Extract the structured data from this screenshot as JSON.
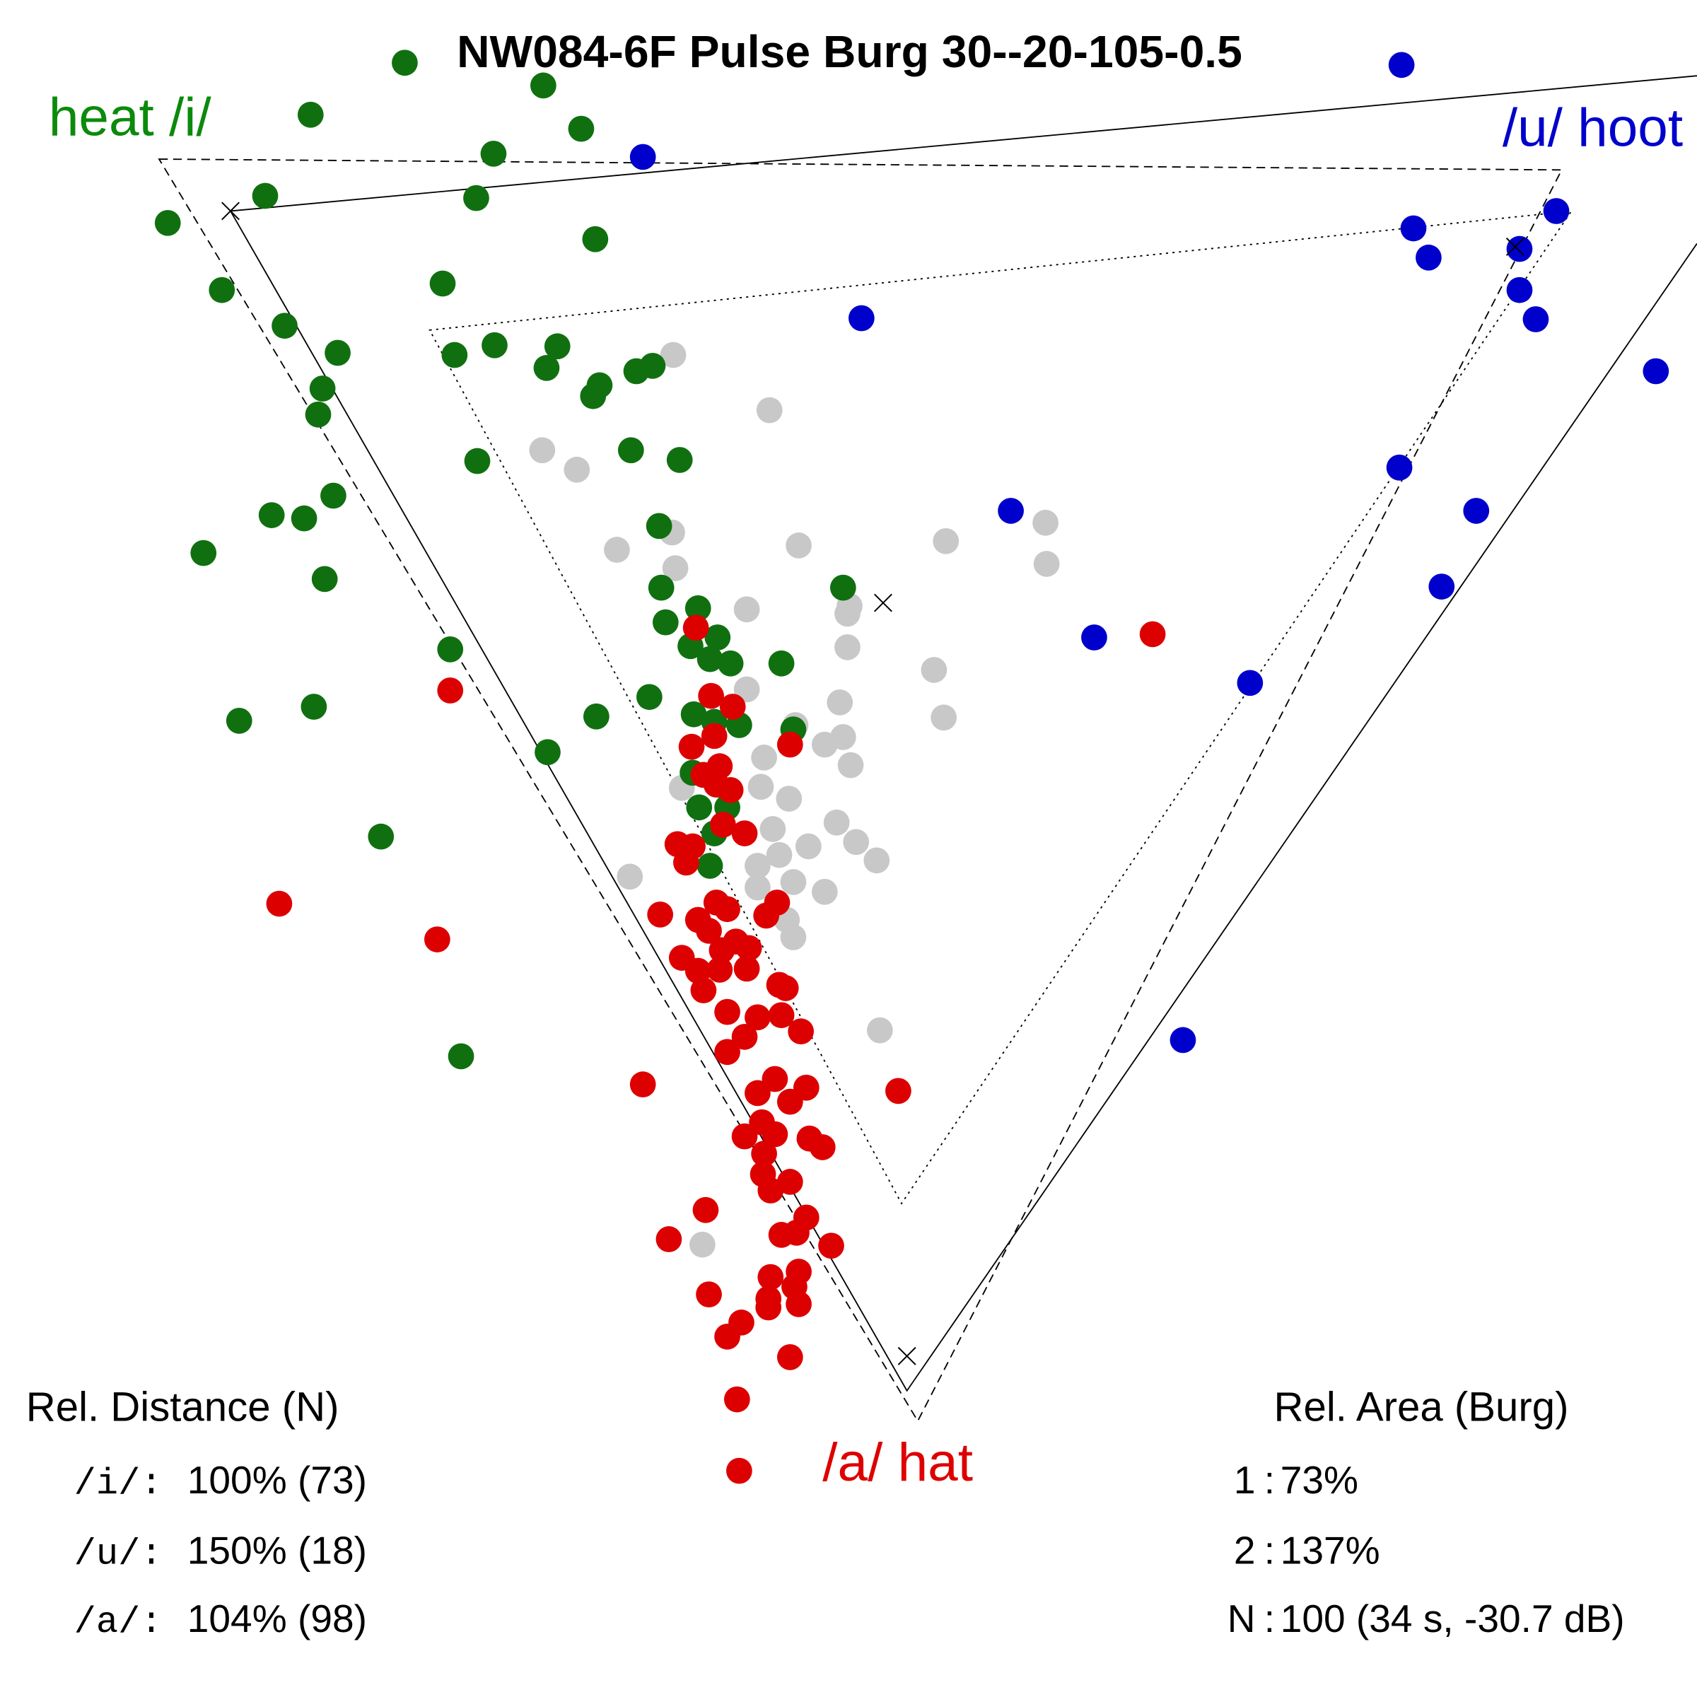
{
  "chart_data": {
    "type": "scatter",
    "title": "NW084-6F Pulse Burg 30--20-105-0.5",
    "xlabel": "",
    "ylabel": "",
    "units_note": "plot units (unlabeled axes)",
    "xlim": [
      0,
      1568
    ],
    "ylim": [
      1568,
      0
    ],
    "grid": false,
    "vowel_labels": {
      "i": {
        "text": "heat /i/",
        "color": "#0b8a0b"
      },
      "u": {
        "text": "/u/ hoot",
        "color": "#0000cc"
      },
      "a": {
        "text": "/a/ hat",
        "color": "#dd0000"
      }
    },
    "series": [
      {
        "name": "other",
        "color": "#c8c8c8",
        "points": [
          [
            622,
            328
          ],
          [
            711,
            379
          ],
          [
            501,
            416
          ],
          [
            533,
            434
          ],
          [
            570,
            508
          ],
          [
            621,
            492
          ],
          [
            624,
            525
          ],
          [
            738,
            504
          ],
          [
            874,
            500
          ],
          [
            966,
            483
          ],
          [
            967,
            521
          ],
          [
            690,
            563
          ],
          [
            783,
            567
          ],
          [
            785,
            560
          ],
          [
            783,
            598
          ],
          [
            863,
            619
          ],
          [
            872,
            663
          ],
          [
            776,
            649
          ],
          [
            690,
            637
          ],
          [
            735,
            670
          ],
          [
            779,
            681
          ],
          [
            762,
            688
          ],
          [
            786,
            707
          ],
          [
            706,
            700
          ],
          [
            703,
            727
          ],
          [
            729,
            738
          ],
          [
            773,
            760
          ],
          [
            714,
            766
          ],
          [
            747,
            782
          ],
          [
            791,
            778
          ],
          [
            810,
            795
          ],
          [
            582,
            810
          ],
          [
            700,
            800
          ],
          [
            733,
            815
          ],
          [
            762,
            824
          ],
          [
            727,
            850
          ],
          [
            733,
            866
          ],
          [
            630,
            728
          ],
          [
            813,
            952
          ],
          [
            649,
            1150
          ],
          [
            720,
            790
          ],
          [
            700,
            820
          ]
        ]
      },
      {
        "name": "/i/",
        "color": "#107010",
        "points": [
          [
            374,
            58
          ],
          [
            502,
            79
          ],
          [
            287,
            106
          ],
          [
            537,
            119
          ],
          [
            456,
            142
          ],
          [
            245,
            181
          ],
          [
            440,
            183
          ],
          [
            155,
            206
          ],
          [
            550,
            221
          ],
          [
            409,
            262
          ],
          [
            205,
            268
          ],
          [
            263,
            301
          ],
          [
            312,
            326
          ],
          [
            420,
            328
          ],
          [
            457,
            319
          ],
          [
            515,
            320
          ],
          [
            505,
            340
          ],
          [
            298,
            359
          ],
          [
            294,
            383
          ],
          [
            554,
            356
          ],
          [
            548,
            366
          ],
          [
            588,
            343
          ],
          [
            603,
            338
          ],
          [
            441,
            426
          ],
          [
            583,
            416
          ],
          [
            628,
            425
          ],
          [
            308,
            458
          ],
          [
            251,
            476
          ],
          [
            281,
            479
          ],
          [
            188,
            511
          ],
          [
            300,
            535
          ],
          [
            609,
            486
          ],
          [
            611,
            543
          ],
          [
            779,
            543
          ],
          [
            645,
            562
          ],
          [
            615,
            575
          ],
          [
            663,
            589
          ],
          [
            638,
            597
          ],
          [
            675,
            613
          ],
          [
            656,
            609
          ],
          [
            722,
            613
          ],
          [
            416,
            600
          ],
          [
            600,
            644
          ],
          [
            551,
            662
          ],
          [
            290,
            653
          ],
          [
            221,
            666
          ],
          [
            733,
            674
          ],
          [
            641,
            660
          ],
          [
            660,
            667
          ],
          [
            683,
            670
          ],
          [
            506,
            695
          ],
          [
            640,
            714
          ],
          [
            646,
            746
          ],
          [
            672,
            746
          ],
          [
            352,
            773
          ],
          [
            660,
            770
          ],
          [
            656,
            800
          ],
          [
            426,
            976
          ]
        ]
      },
      {
        "name": "/u/",
        "color": "#0000cc",
        "points": [
          [
            1295,
            60
          ],
          [
            594,
            145
          ],
          [
            1438,
            195
          ],
          [
            1306,
            211
          ],
          [
            1320,
            238
          ],
          [
            1404,
            230
          ],
          [
            796,
            294
          ],
          [
            1404,
            268
          ],
          [
            1419,
            295
          ],
          [
            1530,
            343
          ],
          [
            1293,
            432
          ],
          [
            934,
            472
          ],
          [
            1364,
            472
          ],
          [
            1332,
            542
          ],
          [
            1011,
            589
          ],
          [
            1155,
            631
          ],
          [
            1093,
            961
          ]
        ]
      },
      {
        "name": "/a/",
        "color": "#dd0000",
        "points": [
          [
            643,
            580
          ],
          [
            416,
            638
          ],
          [
            657,
            643
          ],
          [
            677,
            653
          ],
          [
            730,
            688
          ],
          [
            660,
            680
          ],
          [
            639,
            690
          ],
          [
            665,
            708
          ],
          [
            650,
            716
          ],
          [
            675,
            730
          ],
          [
            662,
            725
          ],
          [
            258,
            835
          ],
          [
            404,
            868
          ],
          [
            688,
            770
          ],
          [
            668,
            762
          ],
          [
            626,
            780
          ],
          [
            640,
            782
          ],
          [
            634,
            797
          ],
          [
            662,
            834
          ],
          [
            718,
            834
          ],
          [
            708,
            846
          ],
          [
            672,
            840
          ],
          [
            645,
            850
          ],
          [
            610,
            845
          ],
          [
            655,
            860
          ],
          [
            680,
            870
          ],
          [
            667,
            878
          ],
          [
            692,
            876
          ],
          [
            630,
            885
          ],
          [
            645,
            897
          ],
          [
            665,
            896
          ],
          [
            690,
            895
          ],
          [
            650,
            915
          ],
          [
            720,
            910
          ],
          [
            726,
            913
          ],
          [
            672,
            935
          ],
          [
            700,
            940
          ],
          [
            722,
            938
          ],
          [
            688,
            958
          ],
          [
            740,
            953
          ],
          [
            672,
            972
          ],
          [
            594,
            1002
          ],
          [
            830,
            1008
          ],
          [
            716,
            997
          ],
          [
            700,
            1010
          ],
          [
            745,
            1005
          ],
          [
            730,
            1018
          ],
          [
            704,
            1037
          ],
          [
            688,
            1050
          ],
          [
            716,
            1048
          ],
          [
            748,
            1052
          ],
          [
            760,
            1060
          ],
          [
            706,
            1066
          ],
          [
            705,
            1085
          ],
          [
            730,
            1092
          ],
          [
            712,
            1100
          ],
          [
            745,
            1125
          ],
          [
            722,
            1141
          ],
          [
            736,
            1139
          ],
          [
            652,
            1118
          ],
          [
            618,
            1145
          ],
          [
            768,
            1151
          ],
          [
            712,
            1180
          ],
          [
            738,
            1175
          ],
          [
            734,
            1189
          ],
          [
            655,
            1196
          ],
          [
            710,
            1200
          ],
          [
            710,
            1208
          ],
          [
            738,
            1205
          ],
          [
            685,
            1222
          ],
          [
            672,
            1235
          ],
          [
            730,
            1254
          ],
          [
            681,
            1293
          ],
          [
            683,
            1359
          ],
          [
            1065,
            586
          ]
        ]
      }
    ],
    "triangles": [
      {
        "name": "solid",
        "style": "solid",
        "vertices": [
          [
            213,
            195
          ],
          [
            1568,
            70
          ],
          [
            838,
            1285
          ],
          [
            1568,
            225
          ]
        ]
      },
      {
        "name": "dashed",
        "style": "dashed",
        "vertices": [
          [
            147,
            147
          ],
          [
            1443,
            157
          ],
          [
            848,
            1313
          ]
        ]
      },
      {
        "name": "dotted",
        "style": "dotted",
        "vertices": [
          [
            397,
            305
          ],
          [
            1452,
            195
          ],
          [
            833,
            1112
          ]
        ]
      }
    ],
    "centroid_markers": [
      [
        213,
        195
      ],
      [
        1400,
        228
      ],
      [
        838,
        1253
      ],
      [
        816,
        557
      ]
    ]
  },
  "stats": {
    "distance": {
      "heading": "Rel. Distance (N)",
      "rows": [
        {
          "label": "/i/:",
          "value": "100% (73)"
        },
        {
          "label": "/u/:",
          "value": "150% (18)"
        },
        {
          "label": "/a/:",
          "value": "104% (98)"
        }
      ]
    },
    "area": {
      "heading": "Rel. Area (Burg)",
      "rows": [
        {
          "label": "1",
          "value": "73%"
        },
        {
          "label": "2",
          "value": "137%"
        },
        {
          "label": "N",
          "value": "100 (34 s, -30.7 dB)"
        }
      ],
      "separator": ":"
    }
  }
}
